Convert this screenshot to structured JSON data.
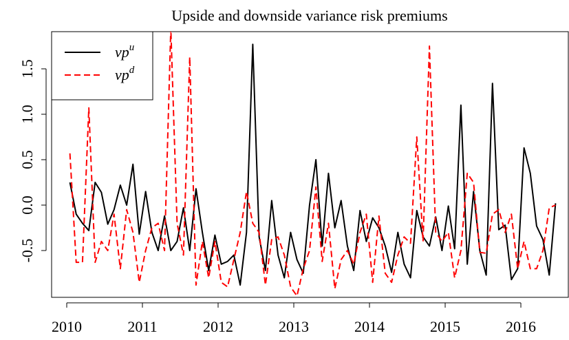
{
  "chart_data": {
    "type": "line",
    "title": "Upside and downside variance risk premiums",
    "x": [
      2010.042,
      2010.125,
      2010.208,
      2010.292,
      2010.375,
      2010.458,
      2010.542,
      2010.625,
      2010.708,
      2010.792,
      2010.875,
      2010.958,
      2011.042,
      2011.125,
      2011.208,
      2011.292,
      2011.375,
      2011.458,
      2011.542,
      2011.625,
      2011.708,
      2011.792,
      2011.875,
      2011.958,
      2012.042,
      2012.125,
      2012.208,
      2012.292,
      2012.375,
      2012.458,
      2012.542,
      2012.625,
      2012.708,
      2012.792,
      2012.875,
      2012.958,
      2013.042,
      2013.125,
      2013.208,
      2013.292,
      2013.375,
      2013.458,
      2013.542,
      2013.625,
      2013.708,
      2013.792,
      2013.875,
      2013.958,
      2014.042,
      2014.125,
      2014.208,
      2014.292,
      2014.375,
      2014.458,
      2014.542,
      2014.625,
      2014.708,
      2014.792,
      2014.875,
      2014.958,
      2015.042,
      2015.125,
      2015.208,
      2015.292,
      2015.375,
      2015.458,
      2015.542,
      2015.625,
      2015.708,
      2015.792,
      2015.875,
      2015.958,
      2016.042,
      2016.125,
      2016.208,
      2016.292,
      2016.375,
      2016.458
    ],
    "series": [
      {
        "name": "vp^u",
        "color": "#000000",
        "dash": false,
        "values": [
          0.25,
          -0.1,
          -0.2,
          -0.28,
          0.25,
          0.14,
          -0.21,
          -0.05,
          0.22,
          0.0,
          0.45,
          -0.32,
          0.15,
          -0.3,
          -0.5,
          -0.12,
          -0.5,
          -0.4,
          -0.03,
          -0.5,
          0.18,
          -0.3,
          -0.72,
          -0.33,
          -0.65,
          -0.62,
          -0.55,
          -0.88,
          -0.3,
          1.77,
          -0.35,
          -0.72,
          0.05,
          -0.55,
          -0.8,
          -0.3,
          -0.6,
          -0.75,
          0.0,
          0.5,
          -0.45,
          0.35,
          -0.25,
          0.05,
          -0.45,
          -0.72,
          -0.06,
          -0.4,
          -0.14,
          -0.25,
          -0.45,
          -0.74,
          -0.3,
          -0.65,
          -0.8,
          -0.06,
          -0.35,
          -0.45,
          -0.13,
          -0.5,
          -0.01,
          -0.48,
          1.1,
          -0.65,
          0.15,
          -0.5,
          -0.77,
          1.34,
          -0.27,
          -0.22,
          -0.82,
          -0.7,
          0.63,
          0.35,
          -0.23,
          -0.38,
          -0.77,
          0.02
        ]
      },
      {
        "name": "vp^d",
        "color": "#ff0000",
        "dash": true,
        "values": [
          0.57,
          -0.63,
          -0.63,
          1.07,
          -0.63,
          -0.4,
          -0.5,
          -0.1,
          -0.7,
          -0.05,
          -0.3,
          -0.85,
          -0.5,
          -0.25,
          -0.2,
          -0.5,
          1.95,
          -0.2,
          -0.55,
          1.63,
          -0.88,
          -0.4,
          -0.8,
          -0.4,
          -0.85,
          -0.9,
          -0.6,
          -0.3,
          0.15,
          -0.2,
          -0.3,
          -0.88,
          -0.38,
          -0.35,
          -0.55,
          -0.9,
          -1.0,
          -0.7,
          -0.5,
          0.2,
          -0.62,
          -0.2,
          -0.92,
          -0.6,
          -0.5,
          -0.65,
          -0.3,
          -0.1,
          -0.85,
          -0.12,
          -0.75,
          -0.85,
          -0.55,
          -0.35,
          -0.42,
          0.75,
          -0.4,
          1.75,
          -0.3,
          -0.4,
          -0.3,
          -0.8,
          -0.5,
          0.35,
          0.25,
          -0.52,
          -0.53,
          -0.1,
          -0.05,
          -0.3,
          -0.1,
          -0.7,
          -0.4,
          -0.7,
          -0.7,
          -0.5,
          -0.03,
          0.0
        ]
      }
    ],
    "xlim": [
      2009.8,
      2016.627
    ],
    "xticks": [
      2010,
      2011,
      2012,
      2013,
      2014,
      2015,
      2016
    ],
    "ylim": [
      -1.015,
      1.909
    ],
    "yticks": [
      -0.5,
      {
        "value": 0,
        "label": "0.0"
      },
      0.5,
      {
        "value": 1,
        "label": "1.0"
      },
      1.5
    ],
    "legend": "top-left"
  }
}
